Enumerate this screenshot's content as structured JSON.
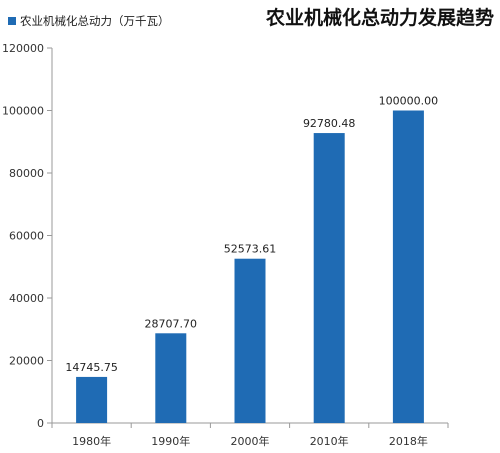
{
  "chart_data": {
    "type": "bar",
    "title": "农业机械化总动力发展趋势",
    "categories": [
      "1980年",
      "1990年",
      "2000年",
      "2010年",
      "2018年"
    ],
    "series": [
      {
        "name": "农业机械化总动力（万千瓦）",
        "values": [
          14745.75,
          28707.7,
          52573.61,
          92780.48,
          100000.0
        ],
        "data_labels": [
          "14745.75",
          "28707.70",
          "52573.61",
          "92780.48",
          "100000.00"
        ]
      }
    ],
    "yticks": [
      "0",
      "20000",
      "40000",
      "60000",
      "80000",
      "100000",
      "120000"
    ],
    "ylim": [
      0,
      120000
    ],
    "grid": false,
    "legend_position": "top-left",
    "colors": {
      "bar": "#1f6bb4",
      "axis": "#9a9a9a"
    }
  }
}
